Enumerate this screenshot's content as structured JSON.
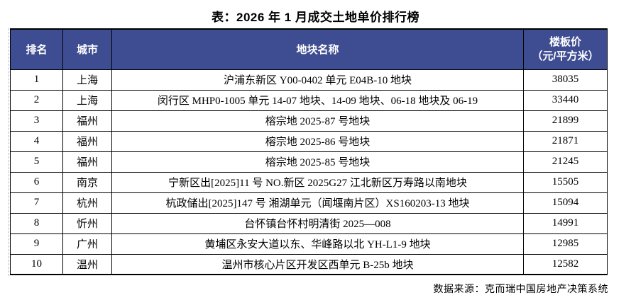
{
  "title": "表：2026 年 1 月成交土地单价排行榜",
  "table": {
    "headers": {
      "rank": "排名",
      "city": "城市",
      "plot_name": "地块名称",
      "price_line1": "楼板价",
      "price_line2": "（元/平方米）"
    },
    "rows": [
      {
        "rank": "1",
        "city": "上海",
        "name": "沪浦东新区 Y00-0402 单元 E04B-10 地块",
        "price": "38035"
      },
      {
        "rank": "2",
        "city": "上海",
        "name": "闵行区 MHP0-1005 单元 14-07 地块、14-09 地块、06-18 地块及 06-19",
        "price": "33440"
      },
      {
        "rank": "3",
        "city": "福州",
        "name": "榕宗地 2025-87 号地块",
        "price": "21899"
      },
      {
        "rank": "4",
        "city": "福州",
        "name": "榕宗地 2025-86 号地块",
        "price": "21871"
      },
      {
        "rank": "5",
        "city": "福州",
        "name": "榕宗地 2025-85 号地块",
        "price": "21245"
      },
      {
        "rank": "6",
        "city": "南京",
        "name": "宁新区出[2025]11 号 NO.新区 2025G27 江北新区万寿路以南地块",
        "price": "15505"
      },
      {
        "rank": "7",
        "city": "杭州",
        "name": "杭政储出[2025]147 号  湘湖单元（闻堰南片区）XS160203-13 地块",
        "price": "15094"
      },
      {
        "rank": "8",
        "city": "忻州",
        "name": "台怀镇台怀村明清街 2025—008",
        "price": "14991"
      },
      {
        "rank": "9",
        "city": "广州",
        "name": "黄埔区永安大道以东、华峰路以北 YH-L1-9 地块",
        "price": "12985"
      },
      {
        "rank": "10",
        "city": "温州",
        "name": "温州市核心片区开发区西单元 B-25b 地块",
        "price": "12582"
      }
    ]
  },
  "footer": "数据来源：克而瑞中国房地产决策系统",
  "colors": {
    "header_bg": "#3E4D91",
    "header_text": "#FFFFFF",
    "border": "#000000",
    "row_bg": "#FFFFFF"
  }
}
